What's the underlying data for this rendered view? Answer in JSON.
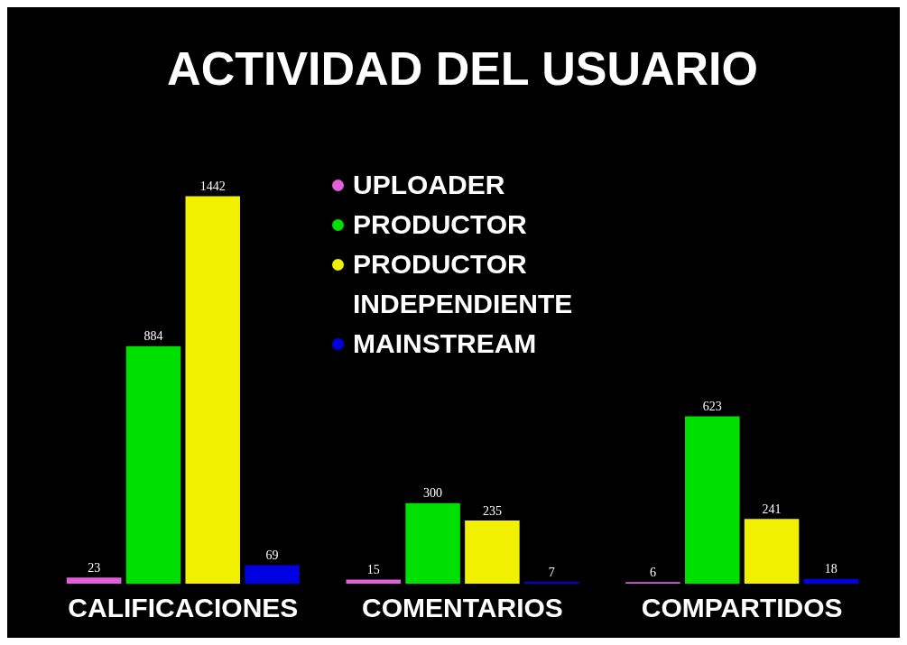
{
  "chart_data": {
    "type": "bar",
    "title": "ACTIVIDAD DEL USUARIO",
    "categories": [
      "CALIFICACIONES",
      "COMENTARIOS",
      "COMPARTIDOS"
    ],
    "series": [
      {
        "name": "UPLOADER",
        "color": "#e060d8",
        "values": [
          23,
          15,
          6
        ]
      },
      {
        "name": "PRODUCTOR",
        "color": "#00e000",
        "values": [
          884,
          300,
          623
        ]
      },
      {
        "name": "PRODUCTOR INDEPENDIENTE",
        "color": "#f0f000",
        "values": [
          1442,
          235,
          241
        ]
      },
      {
        "name": "MAINSTREAM",
        "color": "#0000e0",
        "values": [
          69,
          7,
          18
        ]
      }
    ],
    "data_labels": true,
    "legend": "top",
    "marker": "circle"
  }
}
